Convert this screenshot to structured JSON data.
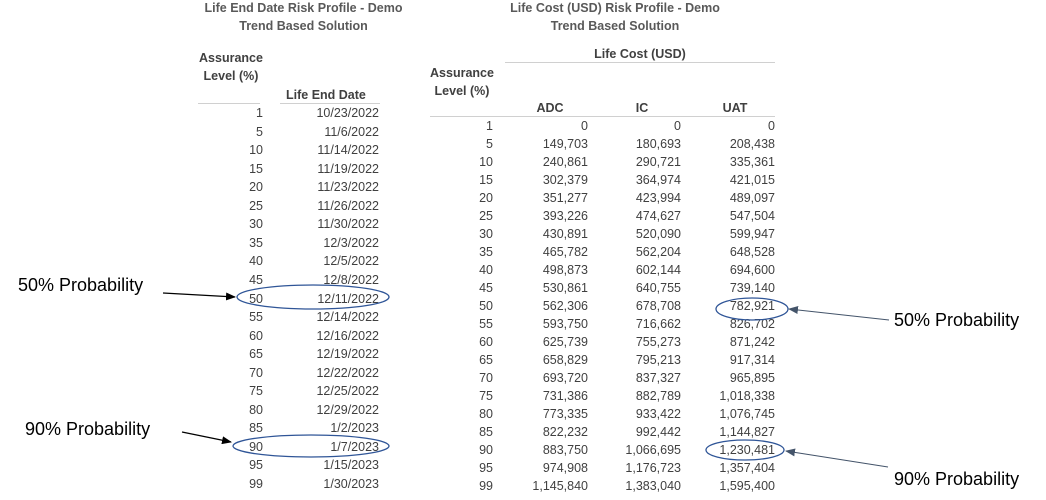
{
  "left_table": {
    "title": "Life End Date Risk Profile - Demo Trend Based Solution",
    "col_assurance": "Assurance Level (%)",
    "col_date": "Life End Date",
    "rows": [
      {
        "level": "1",
        "date": "10/23/2022"
      },
      {
        "level": "5",
        "date": "11/6/2022"
      },
      {
        "level": "10",
        "date": "11/14/2022"
      },
      {
        "level": "15",
        "date": "11/19/2022"
      },
      {
        "level": "20",
        "date": "11/23/2022"
      },
      {
        "level": "25",
        "date": "11/26/2022"
      },
      {
        "level": "30",
        "date": "11/30/2022"
      },
      {
        "level": "35",
        "date": "12/3/2022"
      },
      {
        "level": "40",
        "date": "12/5/2022"
      },
      {
        "level": "45",
        "date": "12/8/2022"
      },
      {
        "level": "50",
        "date": "12/11/2022"
      },
      {
        "level": "55",
        "date": "12/14/2022"
      },
      {
        "level": "60",
        "date": "12/16/2022"
      },
      {
        "level": "65",
        "date": "12/19/2022"
      },
      {
        "level": "70",
        "date": "12/22/2022"
      },
      {
        "level": "75",
        "date": "12/25/2022"
      },
      {
        "level": "80",
        "date": "12/29/2022"
      },
      {
        "level": "85",
        "date": "1/2/2023"
      },
      {
        "level": "90",
        "date": "1/7/2023"
      },
      {
        "level": "95",
        "date": "1/15/2023"
      },
      {
        "level": "99",
        "date": "1/30/2023"
      }
    ]
  },
  "right_table": {
    "title": "Life Cost (USD) Risk Profile - Demo Trend Based Solution",
    "group_header": "Life Cost (USD)",
    "col_assurance": "Assurance Level (%)",
    "col_adc": "ADC",
    "col_ic": "IC",
    "col_uat": "UAT",
    "rows": [
      {
        "level": "1",
        "adc": "0",
        "ic": "0",
        "uat": "0"
      },
      {
        "level": "5",
        "adc": "149,703",
        "ic": "180,693",
        "uat": "208,438"
      },
      {
        "level": "10",
        "adc": "240,861",
        "ic": "290,721",
        "uat": "335,361"
      },
      {
        "level": "15",
        "adc": "302,379",
        "ic": "364,974",
        "uat": "421,015"
      },
      {
        "level": "20",
        "adc": "351,277",
        "ic": "423,994",
        "uat": "489,097"
      },
      {
        "level": "25",
        "adc": "393,226",
        "ic": "474,627",
        "uat": "547,504"
      },
      {
        "level": "30",
        "adc": "430,891",
        "ic": "520,090",
        "uat": "599,947"
      },
      {
        "level": "35",
        "adc": "465,782",
        "ic": "562,204",
        "uat": "648,528"
      },
      {
        "level": "40",
        "adc": "498,873",
        "ic": "602,144",
        "uat": "694,600"
      },
      {
        "level": "45",
        "adc": "530,861",
        "ic": "640,755",
        "uat": "739,140"
      },
      {
        "level": "50",
        "adc": "562,306",
        "ic": "678,708",
        "uat": "782,921"
      },
      {
        "level": "55",
        "adc": "593,750",
        "ic": "716,662",
        "uat": "826,702"
      },
      {
        "level": "60",
        "adc": "625,739",
        "ic": "755,273",
        "uat": "871,242"
      },
      {
        "level": "65",
        "adc": "658,829",
        "ic": "795,213",
        "uat": "917,314"
      },
      {
        "level": "70",
        "adc": "693,720",
        "ic": "837,327",
        "uat": "965,895"
      },
      {
        "level": "75",
        "adc": "731,386",
        "ic": "882,789",
        "uat": "1,018,338"
      },
      {
        "level": "80",
        "adc": "773,335",
        "ic": "933,422",
        "uat": "1,076,745"
      },
      {
        "level": "85",
        "adc": "822,232",
        "ic": "992,442",
        "uat": "1,144,827"
      },
      {
        "level": "90",
        "adc": "883,750",
        "ic": "1,066,695",
        "uat": "1,230,481"
      },
      {
        "level": "95",
        "adc": "974,908",
        "ic": "1,176,723",
        "uat": "1,357,404"
      },
      {
        "level": "99",
        "adc": "1,145,840",
        "ic": "1,383,040",
        "uat": "1,595,400"
      }
    ]
  },
  "callouts": {
    "left_50": "50% Probability",
    "left_90": "90% Probability",
    "right_50": "50% Probability",
    "right_90": "90% Probability"
  },
  "colors": {
    "ellipse": "#2f5597",
    "arrow": "#000000",
    "right_arrow": "#44546a"
  }
}
